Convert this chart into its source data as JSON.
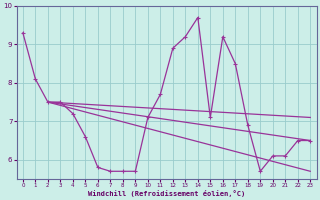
{
  "xlabel": "Windchill (Refroidissement éolien,°C)",
  "bg_color": "#cceee8",
  "line_color": "#993399",
  "grid_color": "#99cccc",
  "x_data": [
    0,
    1,
    2,
    3,
    4,
    5,
    6,
    7,
    8,
    9,
    10,
    11,
    12,
    13,
    14,
    15,
    16,
    17,
    18,
    19,
    20,
    21,
    22,
    23
  ],
  "y_data": [
    9.3,
    8.1,
    7.5,
    7.5,
    7.2,
    6.6,
    5.8,
    5.7,
    5.7,
    5.7,
    7.1,
    7.7,
    8.9,
    9.2,
    9.7,
    7.1,
    9.2,
    8.5,
    6.9,
    5.7,
    6.1,
    6.1,
    6.5,
    6.5
  ],
  "trend1_x": [
    2,
    23
  ],
  "trend1_y": [
    7.5,
    6.5
  ],
  "trend2_x": [
    2,
    23
  ],
  "trend2_y": [
    7.5,
    7.1
  ],
  "trend3_x": [
    2,
    23
  ],
  "trend3_y": [
    7.5,
    5.7
  ],
  "xlim": [
    -0.5,
    23.5
  ],
  "ylim": [
    5.5,
    10.0
  ],
  "yticks": [
    6,
    7,
    8,
    9,
    10
  ],
  "xticks": [
    0,
    1,
    2,
    3,
    4,
    5,
    6,
    7,
    8,
    9,
    10,
    11,
    12,
    13,
    14,
    15,
    16,
    17,
    18,
    19,
    20,
    21,
    22,
    23
  ]
}
